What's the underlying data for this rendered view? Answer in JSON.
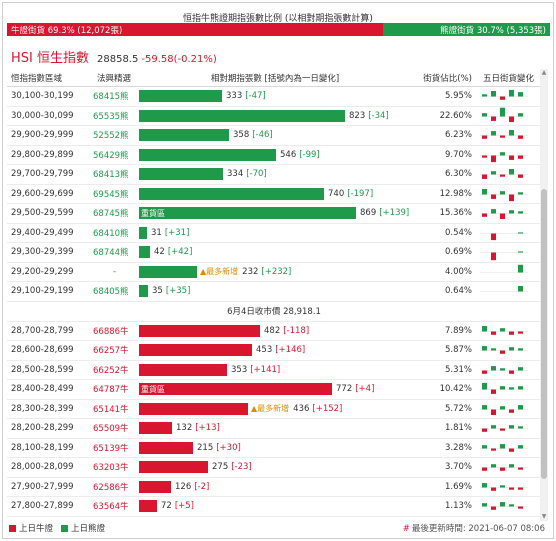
{
  "ratio": {
    "title": "恒指牛熊證期指張數比例 (以相對期指張數計算)",
    "bull_label": "牛證街貨 69.3% (12,072張)",
    "bull_pct": 69.3,
    "bear_label": "熊證街貨 30.7% (5,353張)",
    "bear_pct": 30.7
  },
  "index": {
    "name": "HSI 恒生指數",
    "value": "28858.5",
    "change": "-59.58(-0.21%)"
  },
  "table": {
    "headers": {
      "range": "恒指指數區域",
      "code": "法興精選",
      "bar": "相對期指張數 [括號內為一日變化]",
      "pct": "街貨佔比(%)",
      "trend": "五日街貨變化"
    },
    "bear_rows": [
      {
        "range": "30,100-30,199",
        "code": "68415熊",
        "qty": 333,
        "delta": "[-47]",
        "pct": "5.95%",
        "trend": [
          2,
          5,
          -3,
          6,
          4
        ]
      },
      {
        "range": "30,000-30,099",
        "code": "65535熊",
        "qty": 823,
        "delta": "[-34]",
        "pct": "22.60%",
        "trend": [
          3,
          -4,
          8,
          -5,
          3
        ]
      },
      {
        "range": "29,900-29,999",
        "code": "52552熊",
        "qty": 358,
        "delta": "[-46]",
        "pct": "6.23%",
        "trend": [
          -3,
          4,
          -2,
          5,
          -3
        ]
      },
      {
        "range": "29,800-29,899",
        "code": "56429熊",
        "qty": 546,
        "delta": "[-99]",
        "pct": "9.70%",
        "trend": [
          -2,
          -6,
          3,
          -4,
          -3
        ]
      },
      {
        "range": "29,700-29,799",
        "code": "68413熊",
        "qty": 334,
        "delta": "[-70]",
        "pct": "6.30%",
        "trend": [
          -4,
          3,
          -2,
          5,
          -3
        ]
      },
      {
        "range": "29,600-29,699",
        "code": "69545熊",
        "qty": 740,
        "delta": "[-197]",
        "pct": "12.98%",
        "trend": [
          5,
          -4,
          3,
          -6,
          2
        ]
      },
      {
        "range": "29,500-29,599",
        "code": "68745熊",
        "qty": 869,
        "delta": "[+139]",
        "pct": "15.36%",
        "trend": [
          -3,
          4,
          -5,
          3,
          2
        ],
        "heavy": "重貨區"
      },
      {
        "range": "29,400-29,499",
        "code": "68410熊",
        "qty": 31,
        "delta": "[+31]",
        "pct": "0.54%",
        "trend": [
          0,
          -6,
          0,
          0,
          1
        ]
      },
      {
        "range": "29,300-29,399",
        "code": "68744熊",
        "qty": 42,
        "delta": "[+42]",
        "pct": "0.69%",
        "trend": [
          0,
          -7,
          0,
          0,
          1
        ]
      },
      {
        "range": "29,200-29,299",
        "code": "-",
        "qty": 232,
        "delta": "[+232]",
        "pct": "4.00%",
        "trend": [
          0,
          0,
          0,
          0,
          7
        ],
        "most_new": "最多新增"
      },
      {
        "range": "29,100-29,199",
        "code": "68405熊",
        "qty": 35,
        "delta": "[+35]",
        "pct": "0.64%",
        "trend": [
          0,
          0,
          0,
          0,
          5
        ]
      }
    ],
    "separator": "6月4日收市價 28,918.1",
    "bull_rows": [
      {
        "range": "28,700-28,799",
        "code": "66886牛",
        "qty": 482,
        "delta": "[-118]",
        "pct": "7.89%",
        "trend": [
          5,
          -3,
          3,
          -3,
          -2
        ]
      },
      {
        "range": "28,600-28,699",
        "code": "66257牛",
        "qty": 453,
        "delta": "[+146]",
        "pct": "5.87%",
        "trend": [
          4,
          2,
          -3,
          3,
          2
        ]
      },
      {
        "range": "28,500-28,599",
        "code": "66252牛",
        "qty": 353,
        "delta": "[+141]",
        "pct": "5.31%",
        "trend": [
          -3,
          4,
          2,
          -3,
          3
        ]
      },
      {
        "range": "28,400-28,499",
        "code": "64787牛",
        "qty": 772,
        "delta": "[+4]",
        "pct": "10.42%",
        "trend": [
          6,
          -4,
          3,
          2,
          3
        ],
        "heavy": "重貨區"
      },
      {
        "range": "28,300-28,399",
        "code": "65141牛",
        "qty": 436,
        "delta": "[+152]",
        "pct": "5.72%",
        "trend": [
          4,
          -5,
          3,
          -3,
          4
        ],
        "most_new": "最多新增"
      },
      {
        "range": "28,200-28,299",
        "code": "65509牛",
        "qty": 132,
        "delta": "[+13]",
        "pct": "1.81%",
        "trend": [
          -3,
          3,
          -2,
          3,
          2
        ]
      },
      {
        "range": "28,100-28,199",
        "code": "65139牛",
        "qty": 215,
        "delta": "[+30]",
        "pct": "3.28%",
        "trend": [
          3,
          -2,
          4,
          -3,
          3
        ]
      },
      {
        "range": "28,000-28,099",
        "code": "63203牛",
        "qty": 275,
        "delta": "[-23]",
        "pct": "3.70%",
        "trend": [
          -3,
          3,
          -3,
          3,
          -2
        ]
      },
      {
        "range": "27,900-27,999",
        "code": "62586牛",
        "qty": 126,
        "delta": "[-2]",
        "pct": "1.69%",
        "trend": [
          4,
          -3,
          2,
          -2,
          -2
        ]
      },
      {
        "range": "27,800-27,899",
        "code": "63564牛",
        "qty": 72,
        "delta": "[+5]",
        "pct": "1.13%",
        "trend": [
          3,
          -3,
          4,
          2,
          -2
        ]
      }
    ]
  },
  "footer": {
    "bull_legend": "上日牛證",
    "bear_legend": "上日熊證",
    "updated": "最後更新時間: 2021-06-07 08:06"
  },
  "colors": {
    "bull": "#d9162f",
    "bear": "#1f9a4b",
    "most_new": "#e08a00"
  },
  "icons": {
    "scroll_up": "triangle-up",
    "scroll_down": "triangle-down"
  }
}
